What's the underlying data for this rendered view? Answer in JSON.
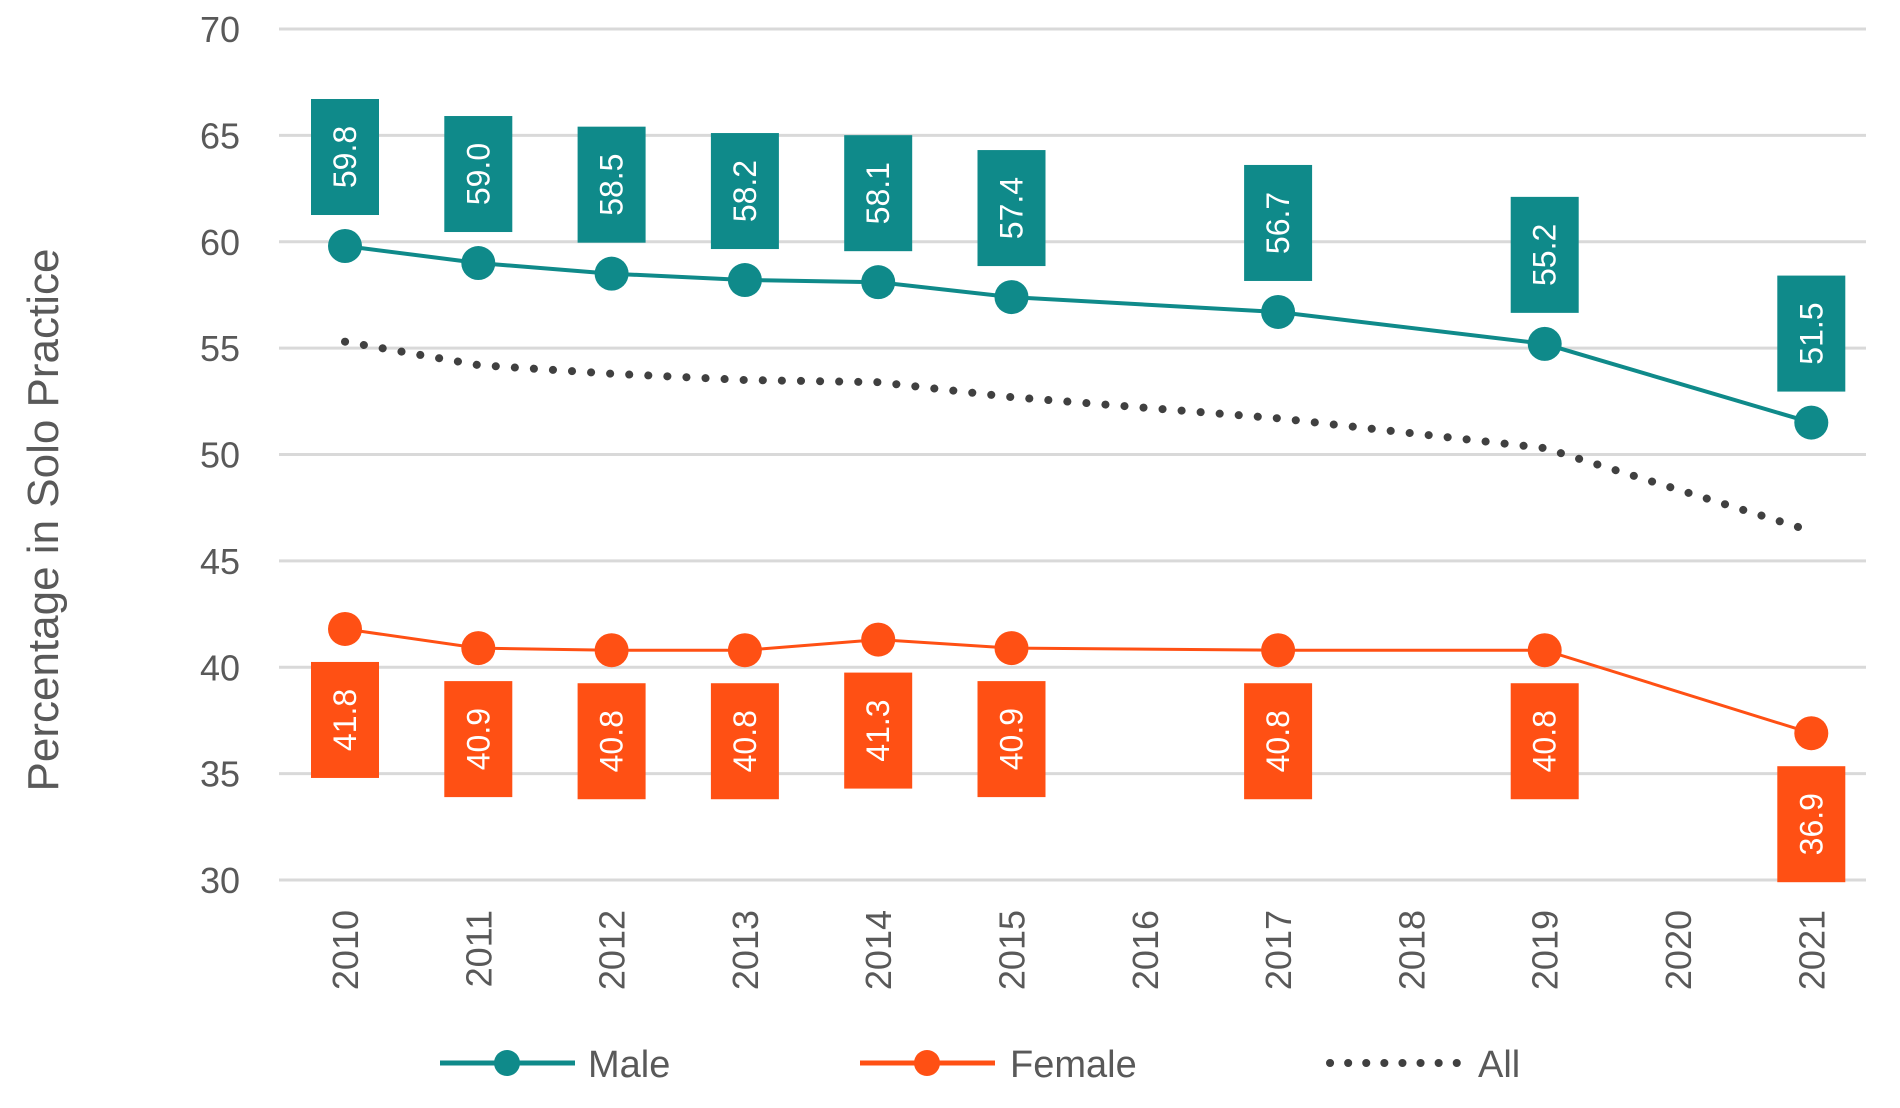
{
  "chart_data": {
    "type": "line",
    "title": "",
    "xlabel": "",
    "ylabel": "Percentage in Solo Practice",
    "ylim": [
      30,
      70
    ],
    "yticks": [
      30,
      35,
      40,
      45,
      50,
      55,
      60,
      65,
      70
    ],
    "grid": true,
    "categories": [
      "2010",
      "2011",
      "2012",
      "2013",
      "2014",
      "2015",
      "2016",
      "2017",
      "2018",
      "2019",
      "2020",
      "2021"
    ],
    "series": [
      {
        "name": "Male",
        "color": "#0F8A8A",
        "style": "solid-markers",
        "x": [
          "2010",
          "2011",
          "2012",
          "2013",
          "2014",
          "2015",
          "2017",
          "2019",
          "2021"
        ],
        "values": [
          59.8,
          59.0,
          58.5,
          58.2,
          58.1,
          57.4,
          56.7,
          55.2,
          51.5
        ],
        "labels": [
          "59.8",
          "59.0",
          "58.5",
          "58.2",
          "58.1",
          "57.4",
          "56.7",
          "55.2",
          "51.5"
        ]
      },
      {
        "name": "Female",
        "color": "#FF5014",
        "style": "solid-markers",
        "x": [
          "2010",
          "2011",
          "2012",
          "2013",
          "2014",
          "2015",
          "2017",
          "2019",
          "2021"
        ],
        "values": [
          41.8,
          40.9,
          40.8,
          40.8,
          41.3,
          40.9,
          40.8,
          40.8,
          36.9
        ],
        "labels": [
          "41.8",
          "40.9",
          "40.8",
          "40.8",
          "41.3",
          "40.9",
          "40.8",
          "40.8",
          "36.9"
        ]
      },
      {
        "name": "All",
        "color": "#404040",
        "style": "dotted",
        "x": [
          "2010",
          "2011",
          "2012",
          "2013",
          "2014",
          "2015",
          "2017",
          "2019",
          "2021"
        ],
        "values": [
          55.3,
          54.2,
          53.8,
          53.5,
          53.4,
          52.7,
          51.7,
          50.3,
          46.4
        ]
      }
    ],
    "legend": {
      "position": "bottom",
      "entries": [
        "Male",
        "Female",
        "All"
      ]
    }
  }
}
